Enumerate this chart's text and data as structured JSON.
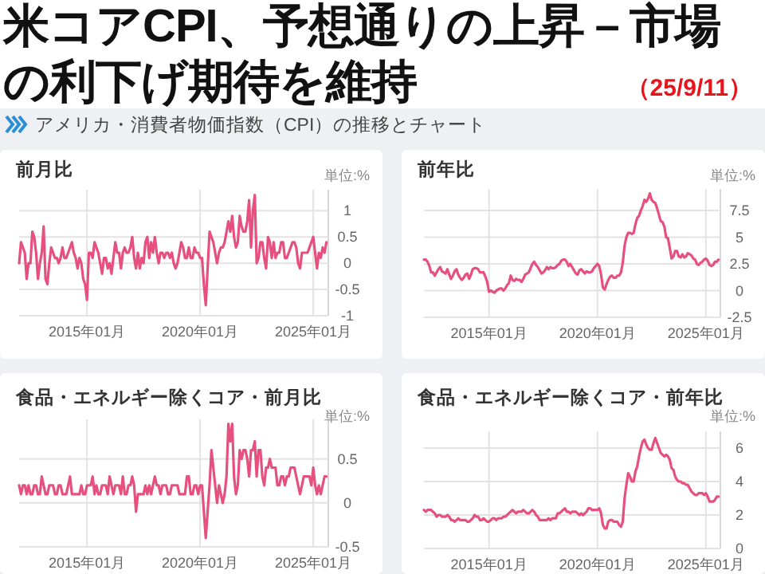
{
  "chart_data": [
    {
      "type": "other",
      "title": "米コアCPI、予想通りの上昇－市場の利下げ期待を維持",
      "subtitle": "アメリカ・消費者物価指数（CPI）の推移とチャート",
      "annotations": [
        "（25/9/11）"
      ]
    },
    {
      "type": "line",
      "title": "前月比",
      "ylabel": "単位:%",
      "color": "#e6507f",
      "grid": true,
      "xlim": [
        "2012-01",
        "2025-09"
      ],
      "ylim": [
        -1,
        1.4
      ],
      "yticks": [
        -1,
        -0.5,
        0,
        0.5,
        1
      ],
      "xticks": [
        {
          "value": "2015-01",
          "label": "2015年01月"
        },
        {
          "value": "2020-01",
          "label": "2020年01月"
        },
        {
          "value": "2025-01",
          "label": "2025年01月"
        }
      ],
      "x": [
        "2012-01",
        "2012-02",
        "2012-03",
        "2012-04",
        "2012-05",
        "2012-06",
        "2012-07",
        "2012-08",
        "2012-09",
        "2012-10",
        "2012-11",
        "2012-12",
        "2013-01",
        "2013-02",
        "2013-03",
        "2013-04",
        "2013-05",
        "2013-06",
        "2013-07",
        "2013-08",
        "2013-09",
        "2013-10",
        "2013-11",
        "2013-12",
        "2014-01",
        "2014-02",
        "2014-03",
        "2014-04",
        "2014-05",
        "2014-06",
        "2014-07",
        "2014-08",
        "2014-09",
        "2014-10",
        "2014-11",
        "2014-12",
        "2015-01",
        "2015-02",
        "2015-03",
        "2015-04",
        "2015-05",
        "2015-06",
        "2015-07",
        "2015-08",
        "2015-09",
        "2015-10",
        "2015-11",
        "2015-12",
        "2016-01",
        "2016-02",
        "2016-03",
        "2016-04",
        "2016-05",
        "2016-06",
        "2016-07",
        "2016-08",
        "2016-09",
        "2016-10",
        "2016-11",
        "2016-12",
        "2017-01",
        "2017-02",
        "2017-03",
        "2017-04",
        "2017-05",
        "2017-06",
        "2017-07",
        "2017-08",
        "2017-09",
        "2017-10",
        "2017-11",
        "2017-12",
        "2018-01",
        "2018-02",
        "2018-03",
        "2018-04",
        "2018-05",
        "2018-06",
        "2018-07",
        "2018-08",
        "2018-09",
        "2018-10",
        "2018-11",
        "2018-12",
        "2019-01",
        "2019-02",
        "2019-03",
        "2019-04",
        "2019-05",
        "2019-06",
        "2019-07",
        "2019-08",
        "2019-09",
        "2019-10",
        "2019-11",
        "2019-12",
        "2020-01",
        "2020-02",
        "2020-03",
        "2020-04",
        "2020-05",
        "2020-06",
        "2020-07",
        "2020-08",
        "2020-09",
        "2020-10",
        "2020-11",
        "2020-12",
        "2021-01",
        "2021-02",
        "2021-03",
        "2021-04",
        "2021-05",
        "2021-06",
        "2021-07",
        "2021-08",
        "2021-09",
        "2021-10",
        "2021-11",
        "2021-12",
        "2022-01",
        "2022-02",
        "2022-03",
        "2022-04",
        "2022-05",
        "2022-06",
        "2022-07",
        "2022-08",
        "2022-09",
        "2022-10",
        "2022-11",
        "2022-12",
        "2023-01",
        "2023-02",
        "2023-03",
        "2023-04",
        "2023-05",
        "2023-06",
        "2023-07",
        "2023-08",
        "2023-09",
        "2023-10",
        "2023-11",
        "2023-12",
        "2024-01",
        "2024-02",
        "2024-03",
        "2024-04",
        "2024-05",
        "2024-06",
        "2024-07",
        "2024-08",
        "2024-09",
        "2024-10",
        "2024-11",
        "2024-12",
        "2025-01",
        "2025-02",
        "2025-03",
        "2025-04",
        "2025-05",
        "2025-06",
        "2025-07",
        "2025-08"
      ],
      "values": [
        0.0,
        0.4,
        0.3,
        0.2,
        -0.3,
        0.0,
        0.0,
        0.6,
        0.5,
        0.2,
        -0.3,
        0.0,
        0.2,
        0.7,
        -0.3,
        -0.4,
        0.0,
        0.3,
        0.2,
        0.1,
        0.1,
        0.0,
        0.1,
        0.3,
        0.1,
        0.1,
        0.2,
        0.3,
        0.4,
        0.2,
        0.1,
        -0.1,
        0.1,
        0.0,
        -0.3,
        -0.4,
        -0.7,
        0.2,
        0.2,
        0.1,
        0.4,
        0.3,
        0.2,
        0.0,
        -0.2,
        0.1,
        0.1,
        -0.1,
        0.0,
        -0.2,
        0.1,
        0.4,
        0.2,
        0.2,
        -0.1,
        0.2,
        0.3,
        0.2,
        0.2,
        0.3,
        0.5,
        0.1,
        -0.1,
        0.2,
        -0.1,
        0.1,
        0.0,
        0.4,
        0.5,
        0.1,
        0.4,
        0.2,
        0.5,
        0.2,
        0.0,
        0.2,
        0.2,
        0.1,
        0.2,
        0.2,
        0.1,
        0.2,
        0.0,
        -0.1,
        0.0,
        0.2,
        0.4,
        0.3,
        0.1,
        0.1,
        0.3,
        0.1,
        0.1,
        0.3,
        0.2,
        0.2,
        0.1,
        0.1,
        -0.4,
        -0.8,
        -0.1,
        0.6,
        0.5,
        0.4,
        0.2,
        0.0,
        0.2,
        0.3,
        0.3,
        0.4,
        0.6,
        0.8,
        0.6,
        0.9,
        0.5,
        0.3,
        0.4,
        0.9,
        0.7,
        0.6,
        0.6,
        0.8,
        1.2,
        0.3,
        1.0,
        1.3,
        0.0,
        0.1,
        0.4,
        0.4,
        0.1,
        -0.1,
        0.5,
        0.4,
        0.1,
        0.4,
        0.1,
        0.2,
        0.2,
        0.4,
        0.4,
        0.1,
        0.1,
        0.2,
        0.3,
        0.4,
        0.4,
        0.3,
        0.0,
        -0.1,
        0.2,
        0.2,
        0.2,
        0.2,
        0.3,
        0.4,
        0.5,
        0.2,
        -0.1,
        0.2,
        0.1,
        0.3,
        0.2,
        0.4
      ]
    },
    {
      "type": "line",
      "title": "前年比",
      "ylabel": "単位:%",
      "color": "#e6507f",
      "grid": true,
      "xlim": [
        "2012-01",
        "2025-09"
      ],
      "ylim": [
        -2.5,
        9.5
      ],
      "yticks": [
        -2.5,
        0,
        2.5,
        5,
        7.5
      ],
      "xticks": [
        {
          "value": "2015-01",
          "label": "2015年01月"
        },
        {
          "value": "2020-01",
          "label": "2020年01月"
        },
        {
          "value": "2025-01",
          "label": "2025年01月"
        }
      ],
      "x": [
        "2012-01",
        "2012-02",
        "2012-03",
        "2012-04",
        "2012-05",
        "2012-06",
        "2012-07",
        "2012-08",
        "2012-09",
        "2012-10",
        "2012-11",
        "2012-12",
        "2013-01",
        "2013-02",
        "2013-03",
        "2013-04",
        "2013-05",
        "2013-06",
        "2013-07",
        "2013-08",
        "2013-09",
        "2013-10",
        "2013-11",
        "2013-12",
        "2014-01",
        "2014-02",
        "2014-03",
        "2014-04",
        "2014-05",
        "2014-06",
        "2014-07",
        "2014-08",
        "2014-09",
        "2014-10",
        "2014-11",
        "2014-12",
        "2015-01",
        "2015-02",
        "2015-03",
        "2015-04",
        "2015-05",
        "2015-06",
        "2015-07",
        "2015-08",
        "2015-09",
        "2015-10",
        "2015-11",
        "2015-12",
        "2016-01",
        "2016-02",
        "2016-03",
        "2016-04",
        "2016-05",
        "2016-06",
        "2016-07",
        "2016-08",
        "2016-09",
        "2016-10",
        "2016-11",
        "2016-12",
        "2017-01",
        "2017-02",
        "2017-03",
        "2017-04",
        "2017-05",
        "2017-06",
        "2017-07",
        "2017-08",
        "2017-09",
        "2017-10",
        "2017-11",
        "2017-12",
        "2018-01",
        "2018-02",
        "2018-03",
        "2018-04",
        "2018-05",
        "2018-06",
        "2018-07",
        "2018-08",
        "2018-09",
        "2018-10",
        "2018-11",
        "2018-12",
        "2019-01",
        "2019-02",
        "2019-03",
        "2019-04",
        "2019-05",
        "2019-06",
        "2019-07",
        "2019-08",
        "2019-09",
        "2019-10",
        "2019-11",
        "2019-12",
        "2020-01",
        "2020-02",
        "2020-03",
        "2020-04",
        "2020-05",
        "2020-06",
        "2020-07",
        "2020-08",
        "2020-09",
        "2020-10",
        "2020-11",
        "2020-12",
        "2021-01",
        "2021-02",
        "2021-03",
        "2021-04",
        "2021-05",
        "2021-06",
        "2021-07",
        "2021-08",
        "2021-09",
        "2021-10",
        "2021-11",
        "2021-12",
        "2022-01",
        "2022-02",
        "2022-03",
        "2022-04",
        "2022-05",
        "2022-06",
        "2022-07",
        "2022-08",
        "2022-09",
        "2022-10",
        "2022-11",
        "2022-12",
        "2023-01",
        "2023-02",
        "2023-03",
        "2023-04",
        "2023-05",
        "2023-06",
        "2023-07",
        "2023-08",
        "2023-09",
        "2023-10",
        "2023-11",
        "2023-12",
        "2024-01",
        "2024-02",
        "2024-03",
        "2024-04",
        "2024-05",
        "2024-06",
        "2024-07",
        "2024-08",
        "2024-09",
        "2024-10",
        "2024-11",
        "2024-12",
        "2025-01",
        "2025-02",
        "2025-03",
        "2025-04",
        "2025-05",
        "2025-06",
        "2025-07",
        "2025-08"
      ],
      "values": [
        2.9,
        2.9,
        2.7,
        2.3,
        1.7,
        1.7,
        1.4,
        1.7,
        2.0,
        2.2,
        1.8,
        1.7,
        1.6,
        2.0,
        1.5,
        1.1,
        1.4,
        1.8,
        2.0,
        1.5,
        1.2,
        1.0,
        1.2,
        1.5,
        1.6,
        1.1,
        1.5,
        2.0,
        2.1,
        2.1,
        2.0,
        1.7,
        1.7,
        1.7,
        1.3,
        0.8,
        -0.1,
        0.0,
        -0.1,
        -0.2,
        0.0,
        0.1,
        0.2,
        0.2,
        0.0,
        0.2,
        0.5,
        0.7,
        1.4,
        1.0,
        0.9,
        1.1,
        1.0,
        1.0,
        0.8,
        1.1,
        1.5,
        1.6,
        1.7,
        2.1,
        2.5,
        2.7,
        2.4,
        2.2,
        1.9,
        1.6,
        1.7,
        1.9,
        2.2,
        2.0,
        2.2,
        2.1,
        2.1,
        2.2,
        2.4,
        2.5,
        2.8,
        2.9,
        2.9,
        2.7,
        2.3,
        2.5,
        2.2,
        1.9,
        1.6,
        1.5,
        1.9,
        2.0,
        1.8,
        1.6,
        1.8,
        1.7,
        1.7,
        1.8,
        2.1,
        2.3,
        2.5,
        2.3,
        1.5,
        0.3,
        0.1,
        0.6,
        1.0,
        1.3,
        1.4,
        1.2,
        1.2,
        1.4,
        1.4,
        1.7,
        2.6,
        4.2,
        5.0,
        5.4,
        5.4,
        5.3,
        5.4,
        6.2,
        6.8,
        7.0,
        7.5,
        7.9,
        8.5,
        8.3,
        8.6,
        9.1,
        8.5,
        8.3,
        8.2,
        7.7,
        7.1,
        6.5,
        6.4,
        6.0,
        5.0,
        4.9,
        4.0,
        3.0,
        3.2,
        3.7,
        3.7,
        3.2,
        3.1,
        3.4,
        3.1,
        3.2,
        3.5,
        3.4,
        3.3,
        3.0,
        2.9,
        2.5,
        2.4,
        2.6,
        2.7,
        2.9,
        3.0,
        2.8,
        2.4,
        2.3,
        2.4,
        2.7,
        2.7,
        2.9
      ]
    },
    {
      "type": "line",
      "title": "食品・エネルギー除くコア・前月比",
      "ylabel": "単位:%",
      "color": "#e6507f",
      "grid": true,
      "xlim": [
        "2012-01",
        "2025-09"
      ],
      "ylim": [
        -0.5,
        0.95
      ],
      "yticks": [
        -0.5,
        0,
        0.5
      ],
      "xticks": [
        {
          "value": "2015-01",
          "label": "2015年01月"
        },
        {
          "value": "2020-01",
          "label": "2020年01月"
        },
        {
          "value": "2025-01",
          "label": "2025年01月"
        }
      ],
      "x": [
        "2012-01",
        "2012-02",
        "2012-03",
        "2012-04",
        "2012-05",
        "2012-06",
        "2012-07",
        "2012-08",
        "2012-09",
        "2012-10",
        "2012-11",
        "2012-12",
        "2013-01",
        "2013-02",
        "2013-03",
        "2013-04",
        "2013-05",
        "2013-06",
        "2013-07",
        "2013-08",
        "2013-09",
        "2013-10",
        "2013-11",
        "2013-12",
        "2014-01",
        "2014-02",
        "2014-03",
        "2014-04",
        "2014-05",
        "2014-06",
        "2014-07",
        "2014-08",
        "2014-09",
        "2014-10",
        "2014-11",
        "2014-12",
        "2015-01",
        "2015-02",
        "2015-03",
        "2015-04",
        "2015-05",
        "2015-06",
        "2015-07",
        "2015-08",
        "2015-09",
        "2015-10",
        "2015-11",
        "2015-12",
        "2016-01",
        "2016-02",
        "2016-03",
        "2016-04",
        "2016-05",
        "2016-06",
        "2016-07",
        "2016-08",
        "2016-09",
        "2016-10",
        "2016-11",
        "2016-12",
        "2017-01",
        "2017-02",
        "2017-03",
        "2017-04",
        "2017-05",
        "2017-06",
        "2017-07",
        "2017-08",
        "2017-09",
        "2017-10",
        "2017-11",
        "2017-12",
        "2018-01",
        "2018-02",
        "2018-03",
        "2018-04",
        "2018-05",
        "2018-06",
        "2018-07",
        "2018-08",
        "2018-09",
        "2018-10",
        "2018-11",
        "2018-12",
        "2019-01",
        "2019-02",
        "2019-03",
        "2019-04",
        "2019-05",
        "2019-06",
        "2019-07",
        "2019-08",
        "2019-09",
        "2019-10",
        "2019-11",
        "2019-12",
        "2020-01",
        "2020-02",
        "2020-03",
        "2020-04",
        "2020-05",
        "2020-06",
        "2020-07",
        "2020-08",
        "2020-09",
        "2020-10",
        "2020-11",
        "2020-12",
        "2021-01",
        "2021-02",
        "2021-03",
        "2021-04",
        "2021-05",
        "2021-06",
        "2021-07",
        "2021-08",
        "2021-09",
        "2021-10",
        "2021-11",
        "2021-12",
        "2022-01",
        "2022-02",
        "2022-03",
        "2022-04",
        "2022-05",
        "2022-06",
        "2022-07",
        "2022-08",
        "2022-09",
        "2022-10",
        "2022-11",
        "2022-12",
        "2023-01",
        "2023-02",
        "2023-03",
        "2023-04",
        "2023-05",
        "2023-06",
        "2023-07",
        "2023-08",
        "2023-09",
        "2023-10",
        "2023-11",
        "2023-12",
        "2024-01",
        "2024-02",
        "2024-03",
        "2024-04",
        "2024-05",
        "2024-06",
        "2024-07",
        "2024-08",
        "2024-09",
        "2024-10",
        "2024-11",
        "2024-12",
        "2025-01",
        "2025-02",
        "2025-03",
        "2025-04",
        "2025-05",
        "2025-06",
        "2025-07",
        "2025-08"
      ],
      "values": [
        0.2,
        0.1,
        0.2,
        0.2,
        0.1,
        0.2,
        0.1,
        0.1,
        0.2,
        0.2,
        0.1,
        0.1,
        0.3,
        0.2,
        0.1,
        0.1,
        0.2,
        0.2,
        0.2,
        0.1,
        0.1,
        0.2,
        0.2,
        0.1,
        0.1,
        0.1,
        0.2,
        0.3,
        0.1,
        0.1,
        0.1,
        0.1,
        0.1,
        0.2,
        0.1,
        0.1,
        0.2,
        0.2,
        0.2,
        0.3,
        0.1,
        0.2,
        0.1,
        0.1,
        0.2,
        0.2,
        0.2,
        0.1,
        0.3,
        0.2,
        0.1,
        0.2,
        0.2,
        0.2,
        0.1,
        0.3,
        0.1,
        0.1,
        0.2,
        0.2,
        0.3,
        0.2,
        -0.1,
        0.1,
        0.1,
        0.1,
        0.1,
        0.2,
        0.1,
        0.2,
        0.1,
        0.2,
        0.3,
        0.2,
        0.2,
        0.1,
        0.2,
        0.2,
        0.2,
        0.1,
        0.1,
        0.2,
        0.2,
        0.2,
        0.2,
        0.1,
        0.1,
        0.1,
        0.1,
        0.3,
        0.3,
        0.1,
        0.1,
        0.2,
        0.2,
        0.1,
        0.2,
        0.2,
        -0.1,
        -0.4,
        -0.1,
        0.2,
        0.6,
        0.4,
        0.2,
        0.0,
        0.2,
        0.1,
        0.0,
        0.1,
        0.3,
        0.9,
        0.7,
        0.9,
        0.3,
        0.1,
        0.2,
        0.6,
        0.5,
        0.6,
        0.6,
        0.5,
        0.3,
        0.6,
        0.6,
        0.7,
        0.3,
        0.6,
        0.6,
        0.3,
        0.2,
        0.4,
        0.4,
        0.5,
        0.4,
        0.4,
        0.4,
        0.2,
        0.2,
        0.3,
        0.3,
        0.2,
        0.3,
        0.3,
        0.4,
        0.4,
        0.4,
        0.3,
        0.2,
        0.1,
        0.2,
        0.3,
        0.3,
        0.3,
        0.3,
        0.2,
        0.4,
        0.2,
        0.1,
        0.2,
        0.1,
        0.2,
        0.3,
        0.3
      ]
    },
    {
      "type": "line",
      "title": "食品・エネルギー除くコア・前年比",
      "ylabel": "単位:%",
      "color": "#e6507f",
      "grid": true,
      "xlim": [
        "2012-01",
        "2025-09"
      ],
      "ylim": [
        0,
        7
      ],
      "yticks": [
        0,
        2,
        4,
        6
      ],
      "xticks": [
        {
          "value": "2015-01",
          "label": "2015年01月"
        },
        {
          "value": "2020-01",
          "label": "2020年01月"
        },
        {
          "value": "2025-01",
          "label": "2025年01月"
        }
      ],
      "x": [
        "2012-01",
        "2012-02",
        "2012-03",
        "2012-04",
        "2012-05",
        "2012-06",
        "2012-07",
        "2012-08",
        "2012-09",
        "2012-10",
        "2012-11",
        "2012-12",
        "2013-01",
        "2013-02",
        "2013-03",
        "2013-04",
        "2013-05",
        "2013-06",
        "2013-07",
        "2013-08",
        "2013-09",
        "2013-10",
        "2013-11",
        "2013-12",
        "2014-01",
        "2014-02",
        "2014-03",
        "2014-04",
        "2014-05",
        "2014-06",
        "2014-07",
        "2014-08",
        "2014-09",
        "2014-10",
        "2014-11",
        "2014-12",
        "2015-01",
        "2015-02",
        "2015-03",
        "2015-04",
        "2015-05",
        "2015-06",
        "2015-07",
        "2015-08",
        "2015-09",
        "2015-10",
        "2015-11",
        "2015-12",
        "2016-01",
        "2016-02",
        "2016-03",
        "2016-04",
        "2016-05",
        "2016-06",
        "2016-07",
        "2016-08",
        "2016-09",
        "2016-10",
        "2016-11",
        "2016-12",
        "2017-01",
        "2017-02",
        "2017-03",
        "2017-04",
        "2017-05",
        "2017-06",
        "2017-07",
        "2017-08",
        "2017-09",
        "2017-10",
        "2017-11",
        "2017-12",
        "2018-01",
        "2018-02",
        "2018-03",
        "2018-04",
        "2018-05",
        "2018-06",
        "2018-07",
        "2018-08",
        "2018-09",
        "2018-10",
        "2018-11",
        "2018-12",
        "2019-01",
        "2019-02",
        "2019-03",
        "2019-04",
        "2019-05",
        "2019-06",
        "2019-07",
        "2019-08",
        "2019-09",
        "2019-10",
        "2019-11",
        "2019-12",
        "2020-01",
        "2020-02",
        "2020-03",
        "2020-04",
        "2020-05",
        "2020-06",
        "2020-07",
        "2020-08",
        "2020-09",
        "2020-10",
        "2020-11",
        "2020-12",
        "2021-01",
        "2021-02",
        "2021-03",
        "2021-04",
        "2021-05",
        "2021-06",
        "2021-07",
        "2021-08",
        "2021-09",
        "2021-10",
        "2021-11",
        "2021-12",
        "2022-01",
        "2022-02",
        "2022-03",
        "2022-04",
        "2022-05",
        "2022-06",
        "2022-07",
        "2022-08",
        "2022-09",
        "2022-10",
        "2022-11",
        "2022-12",
        "2023-01",
        "2023-02",
        "2023-03",
        "2023-04",
        "2023-05",
        "2023-06",
        "2023-07",
        "2023-08",
        "2023-09",
        "2023-10",
        "2023-11",
        "2023-12",
        "2024-01",
        "2024-02",
        "2024-03",
        "2024-04",
        "2024-05",
        "2024-06",
        "2024-07",
        "2024-08",
        "2024-09",
        "2024-10",
        "2024-11",
        "2024-12",
        "2025-01",
        "2025-02",
        "2025-03",
        "2025-04",
        "2025-05",
        "2025-06",
        "2025-07",
        "2025-08"
      ],
      "values": [
        2.3,
        2.2,
        2.3,
        2.3,
        2.3,
        2.2,
        2.1,
        1.9,
        2.0,
        2.0,
        1.9,
        1.9,
        1.9,
        2.0,
        1.9,
        1.7,
        1.7,
        1.6,
        1.7,
        1.8,
        1.7,
        1.7,
        1.7,
        1.7,
        1.6,
        1.6,
        1.7,
        1.8,
        2.0,
        1.9,
        1.9,
        1.7,
        1.7,
        1.8,
        1.7,
        1.6,
        1.6,
        1.7,
        1.8,
        1.8,
        1.7,
        1.8,
        1.8,
        1.8,
        1.9,
        1.9,
        2.0,
        2.1,
        2.2,
        2.3,
        2.2,
        2.1,
        2.2,
        2.2,
        2.2,
        2.3,
        2.2,
        2.1,
        2.1,
        2.2,
        2.3,
        2.2,
        2.0,
        1.9,
        1.7,
        1.7,
        1.7,
        1.7,
        1.7,
        1.8,
        1.7,
        1.8,
        1.8,
        1.8,
        2.1,
        2.1,
        2.2,
        2.3,
        2.4,
        2.2,
        2.2,
        2.1,
        2.2,
        2.2,
        2.2,
        2.1,
        2.0,
        2.1,
        2.0,
        2.1,
        2.2,
        2.4,
        2.4,
        2.3,
        2.3,
        2.3,
        2.3,
        2.4,
        2.1,
        1.4,
        1.2,
        1.2,
        1.6,
        1.7,
        1.7,
        1.6,
        1.6,
        1.6,
        1.4,
        1.3,
        1.6,
        3.0,
        3.8,
        4.5,
        4.3,
        4.0,
        4.0,
        4.6,
        4.9,
        5.5,
        6.0,
        6.4,
        6.5,
        6.2,
        6.0,
        5.9,
        5.9,
        6.3,
        6.6,
        6.3,
        6.0,
        5.7,
        5.6,
        5.5,
        5.6,
        5.5,
        5.3,
        4.8,
        4.7,
        4.3,
        4.1,
        4.0,
        4.0,
        3.9,
        3.9,
        3.8,
        3.8,
        3.6,
        3.4,
        3.3,
        3.2,
        3.2,
        3.3,
        3.3,
        3.3,
        3.2,
        3.3,
        3.1,
        2.8,
        2.8,
        2.8,
        2.9,
        3.1,
        3.1
      ]
    }
  ]
}
